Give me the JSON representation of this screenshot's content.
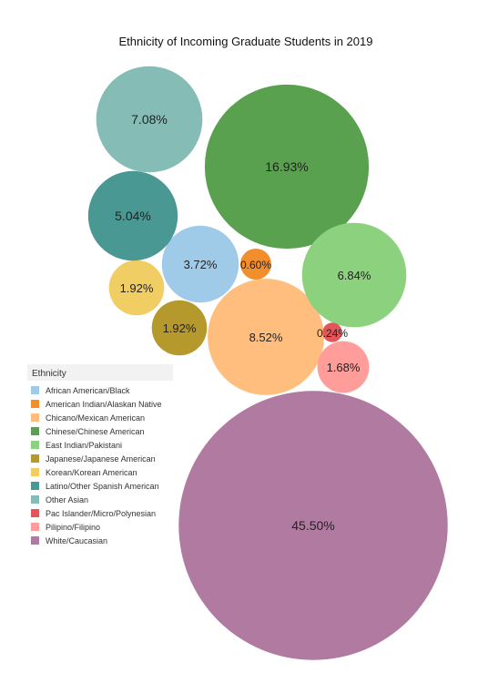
{
  "chart_data": {
    "type": "bubble",
    "title": "Ethnicity of Incoming Graduate Students in 2019",
    "legend_title": "Ethnicity",
    "legend_position": "left",
    "categories": [
      "African American/Black",
      "American Indian/Alaskan Native",
      "Chicano/Mexican American",
      "Chinese/Chinese American",
      "East Indian/Pakistani",
      "Japanese/Japanese American",
      "Korean/Korean American",
      "Latino/Other Spanish American",
      "Other Asian",
      "Pac Islander/Micro/Polynesian",
      "Pilipino/Filipino",
      "White/Caucasian"
    ],
    "values": [
      3.72,
      0.6,
      8.52,
      16.93,
      6.84,
      1.92,
      1.92,
      5.04,
      7.08,
      0.24,
      1.68,
      45.5
    ],
    "labels": [
      "3.72%",
      "0.60%",
      "8.52%",
      "16.93%",
      "6.84%",
      "1.92%",
      "1.92%",
      "5.04%",
      "7.08%",
      "0.24%",
      "1.68%",
      "45.50%"
    ],
    "colors": [
      "#a0cbe8",
      "#f28e2b",
      "#ffbe7d",
      "#59a14f",
      "#8cd17d",
      "#b6992d",
      "#f1ce63",
      "#499894",
      "#86bcb6",
      "#e15759",
      "#ff9d9a",
      "#b07aa1"
    ]
  }
}
